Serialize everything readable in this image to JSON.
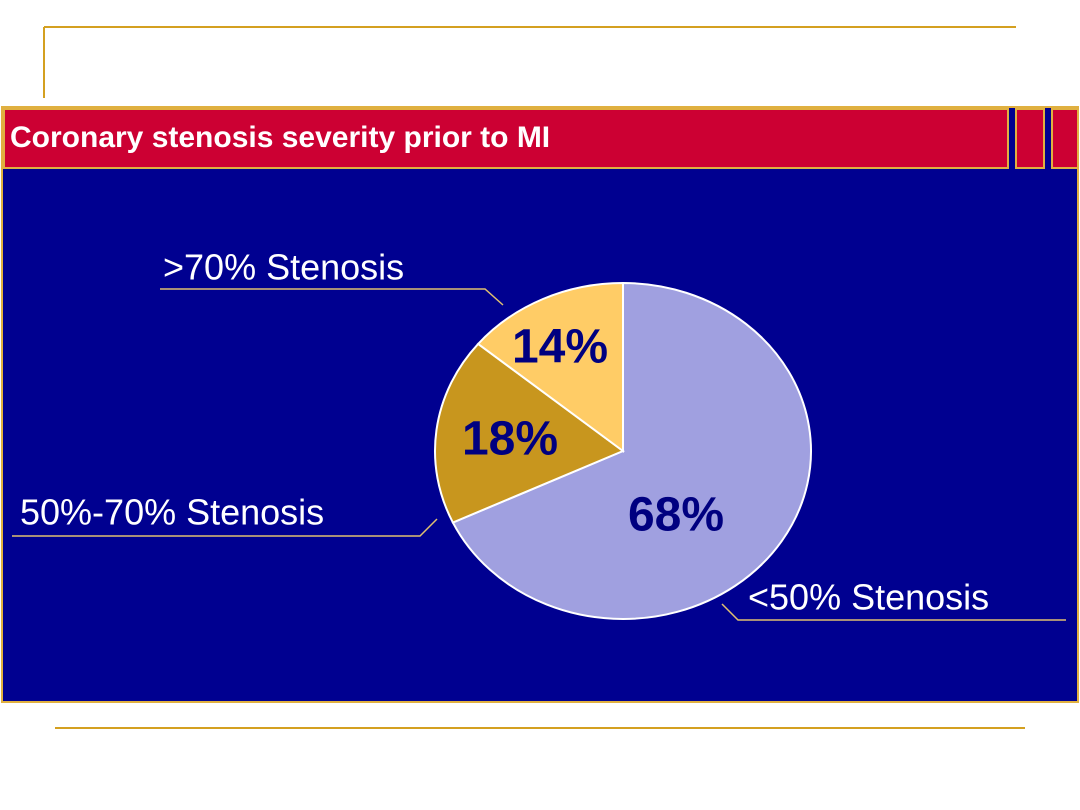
{
  "chart_data": {
    "type": "pie",
    "title": "Coronary stenosis severity prior to MI",
    "categories": [
      "<50% Stenosis",
      "50%-70% Stenosis",
      ">70% Stenosis"
    ],
    "values": [
      68,
      18,
      14
    ],
    "value_labels": [
      "68%",
      "18%",
      "14%"
    ],
    "colors": [
      "#a0a0e0",
      "#c8961e",
      "#ffcc66"
    ]
  }
}
